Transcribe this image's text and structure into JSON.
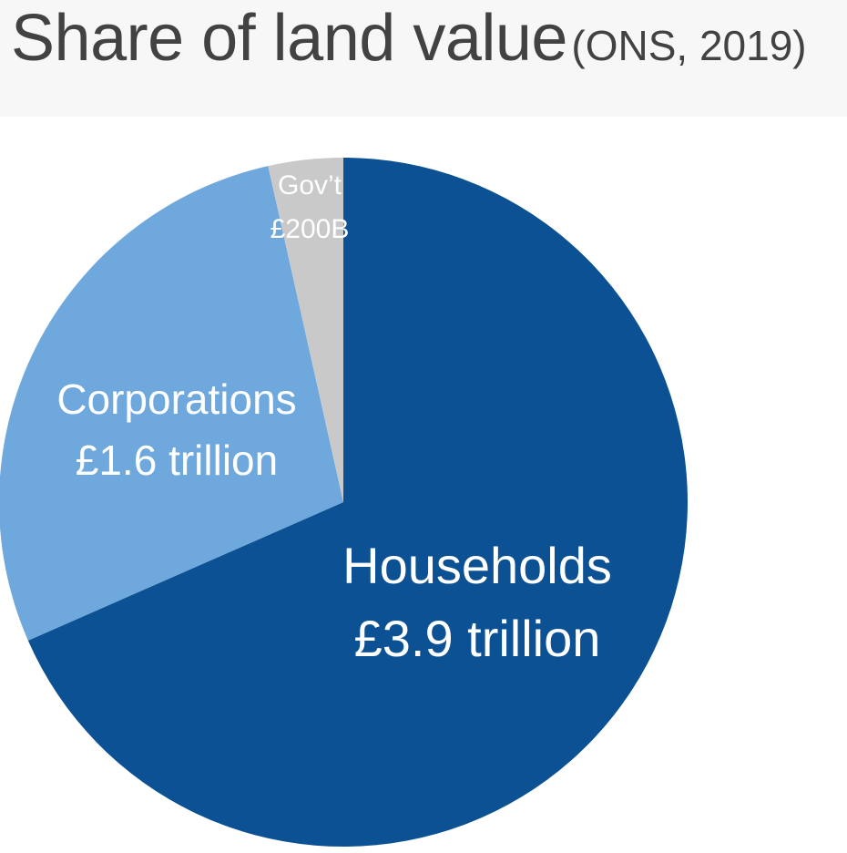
{
  "header": {
    "title": "Share of land value",
    "subtitle": "(ONS, 2019)"
  },
  "chart_data": {
    "type": "pie",
    "title": "Share of land value",
    "subtitle": "(ONS, 2019)",
    "units": "£ trillion",
    "start_angle": "12 o'clock, clockwise",
    "slices": [
      {
        "name": "Households",
        "value": 3.9,
        "value_label": "£3.9 trillion",
        "color": "#0c5193"
      },
      {
        "name": "Corporations",
        "value": 1.6,
        "value_label": "£1.6 trillion",
        "color": "#6ea8dc"
      },
      {
        "name": "Gov’t",
        "value": 0.2,
        "value_label": "£200B",
        "color": "#c9c9c9"
      }
    ]
  }
}
